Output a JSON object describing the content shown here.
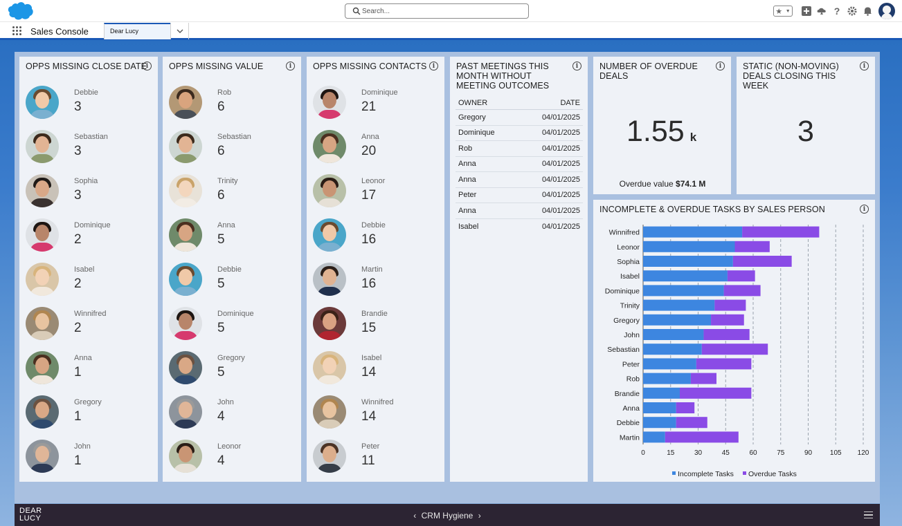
{
  "header": {
    "search_placeholder": "Search...",
    "icons": [
      "favorites-star-icon",
      "add-icon",
      "trailhead-icon",
      "help-icon",
      "setup-gear-icon",
      "notifications-bell-icon",
      "user-avatar"
    ]
  },
  "appnav": {
    "app_name": "Sales Console",
    "tab_label": "Dear Lucy"
  },
  "panels": {
    "close_date": {
      "title": "OPPS MISSING CLOSE DATE",
      "people": [
        {
          "name": "Debbie",
          "value": "3"
        },
        {
          "name": "Sebastian",
          "value": "3"
        },
        {
          "name": "Sophia",
          "value": "3"
        },
        {
          "name": "Dominique",
          "value": "2"
        },
        {
          "name": "Isabel",
          "value": "2"
        },
        {
          "name": "Winnifred",
          "value": "2"
        },
        {
          "name": "Anna",
          "value": "1"
        },
        {
          "name": "Gregory",
          "value": "1"
        },
        {
          "name": "John",
          "value": "1"
        }
      ]
    },
    "missing_value": {
      "title": "OPPS MISSING VALUE",
      "people": [
        {
          "name": "Rob",
          "value": "6"
        },
        {
          "name": "Sebastian",
          "value": "6"
        },
        {
          "name": "Trinity",
          "value": "6"
        },
        {
          "name": "Anna",
          "value": "5"
        },
        {
          "name": "Debbie",
          "value": "5"
        },
        {
          "name": "Dominique",
          "value": "5"
        },
        {
          "name": "Gregory",
          "value": "5"
        },
        {
          "name": "John",
          "value": "4"
        },
        {
          "name": "Leonor",
          "value": "4"
        }
      ]
    },
    "missing_contacts": {
      "title": "OPPS MISSING CONTACTS",
      "people": [
        {
          "name": "Dominique",
          "value": "21"
        },
        {
          "name": "Anna",
          "value": "20"
        },
        {
          "name": "Leonor",
          "value": "17"
        },
        {
          "name": "Debbie",
          "value": "16"
        },
        {
          "name": "Martin",
          "value": "16"
        },
        {
          "name": "Brandie",
          "value": "15"
        },
        {
          "name": "Isabel",
          "value": "14"
        },
        {
          "name": "Winnifred",
          "value": "14"
        },
        {
          "name": "Peter",
          "value": "11"
        }
      ]
    },
    "meetings": {
      "title": "PAST MEETINGS THIS MONTH WITHOUT MEETING OUTCOMES",
      "col_owner": "OWNER",
      "col_date": "DATE",
      "rows": [
        {
          "owner": "Gregory",
          "date": "04/01/2025"
        },
        {
          "owner": "Dominique",
          "date": "04/01/2025"
        },
        {
          "owner": "Rob",
          "date": "04/01/2025"
        },
        {
          "owner": "Anna",
          "date": "04/01/2025"
        },
        {
          "owner": "Anna",
          "date": "04/01/2025"
        },
        {
          "owner": "Peter",
          "date": "04/01/2025"
        },
        {
          "owner": "Anna",
          "date": "04/01/2025"
        },
        {
          "owner": "Isabel",
          "date": "04/01/2025"
        }
      ]
    },
    "overdue_deals": {
      "title": "NUMBER OF OVERDUE DEALS",
      "value": "1.55",
      "suffix": "k",
      "overdue_label": "Overdue value",
      "overdue_value": "$74.1 M"
    },
    "static_deals": {
      "title": "STATIC (NON-MOVING) DEALS CLOSING THIS WEEK",
      "value": "3"
    },
    "tasks": {
      "title": "INCOMPLETE & OVERDUE TASKS BY SALES PERSON"
    }
  },
  "chart_data": {
    "type": "bar",
    "orientation": "horizontal",
    "stacked": true,
    "categories": [
      "Winnifred",
      "Leonor",
      "Sophia",
      "Isabel",
      "Dominique",
      "Trinity",
      "Gregory",
      "John",
      "Sebastian",
      "Peter",
      "Rob",
      "Brandie",
      "Anna",
      "Debbie",
      "Martin"
    ],
    "series": [
      {
        "name": "Incomplete Tasks",
        "color": "#3d86e0",
        "values": [
          54,
          50,
          49,
          46,
          44,
          39,
          37,
          33,
          32,
          29,
          26,
          20,
          18,
          18,
          12
        ]
      },
      {
        "name": "Overdue Tasks",
        "color": "#8a4be6",
        "values": [
          42,
          19,
          32,
          15,
          20,
          17,
          18,
          25,
          36,
          30,
          14,
          39,
          10,
          17,
          40
        ]
      }
    ],
    "xlim": [
      0,
      120
    ],
    "xticks": [
      0,
      15,
      30,
      45,
      60,
      75,
      90,
      105,
      120
    ],
    "grid": true,
    "legend": "bottom"
  },
  "footer": {
    "logo_line1": "DEAR",
    "logo_line2": "LUCY",
    "nav_label": "CRM Hygiene",
    "prev_icon": "chevron-left-icon",
    "next_icon": "chevron-right-icon",
    "menu_icon": "hamburger-menu-icon"
  }
}
